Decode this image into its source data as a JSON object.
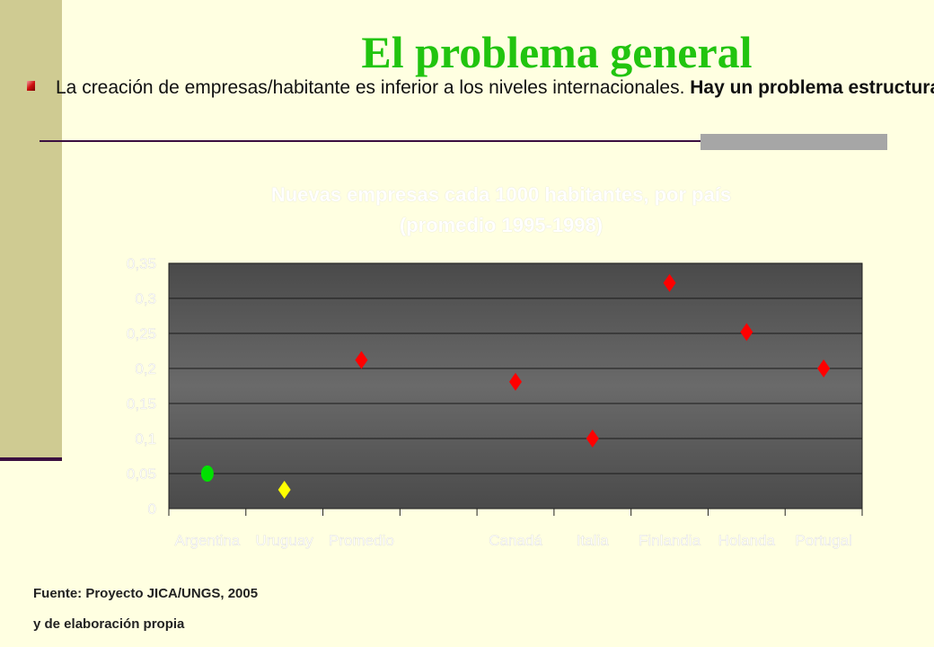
{
  "slide": {
    "title": "El problema general",
    "bullet_text": "La creación de empresas/habitante es inferior a los niveles internacionales. ",
    "bullet_bold": "Hay un problema estructural de fertilidad emprendedora",
    "source_line1": "Fuente: Proyecto JICA/UNGS, 2005",
    "source_line2": "y de elaboración propia"
  },
  "colors": {
    "title": "#21c40f",
    "plot_bg": "#5a5a5a",
    "argentina": "#00e000",
    "uruguay": "#ffff00",
    "others": "#ff0000"
  },
  "chart_data": {
    "type": "scatter",
    "title_line1": "Nuevas empresas cada 1000 habitantes, por país",
    "title_line2": "(promedio 1995-1998)",
    "categories": [
      "Argentina",
      "Uruguay",
      "Promedio",
      "",
      "Canadá",
      "Italia",
      "Finlandia",
      "Holanda",
      "Portugal"
    ],
    "tick_labels": [
      "0",
      "0,05",
      "0,1",
      "0,15",
      "0,2",
      "0,25",
      "0,3",
      "0,35"
    ],
    "ylim": [
      0,
      0.35
    ],
    "grid": true,
    "points": [
      {
        "category": "Argentina",
        "value": 0.05,
        "marker": "circle",
        "color": "#00e000"
      },
      {
        "category": "Uruguay",
        "value": 0.027,
        "marker": "diamond",
        "color": "#ffff00"
      },
      {
        "category": "Promedio",
        "value": 0.212,
        "marker": "diamond",
        "color": "#ff0000"
      },
      {
        "category": "Canadá",
        "value": 0.181,
        "marker": "diamond",
        "color": "#ff0000"
      },
      {
        "category": "Italia",
        "value": 0.1,
        "marker": "diamond",
        "color": "#ff0000"
      },
      {
        "category": "Finlandia",
        "value": 0.322,
        "marker": "diamond",
        "color": "#ff0000"
      },
      {
        "category": "Holanda",
        "value": 0.252,
        "marker": "diamond",
        "color": "#ff0000"
      },
      {
        "category": "Portugal",
        "value": 0.2,
        "marker": "diamond",
        "color": "#ff0000"
      }
    ]
  }
}
